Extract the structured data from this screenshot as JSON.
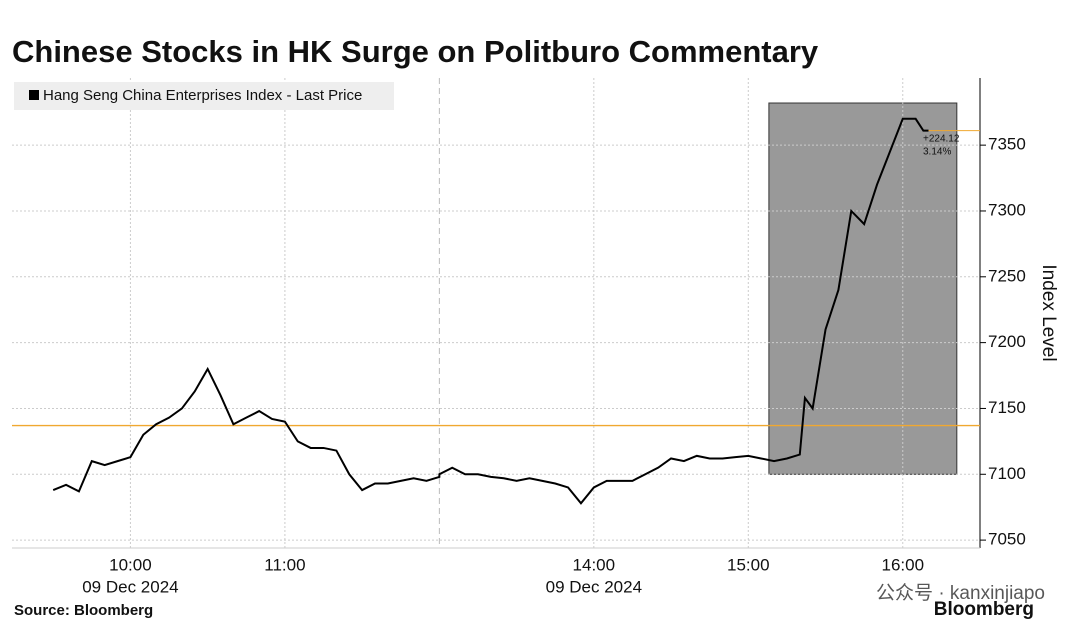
{
  "chart_data": {
    "type": "line",
    "title": "Chinese Stocks in HK Surge on Politburo Commentary",
    "y_label": "Index Level",
    "source": "Source: Bloomberg",
    "brand": "Bloomberg",
    "watermark": "公众号 · kanxinjiapo",
    "x": [
      "09:30",
      "09:35",
      "09:40",
      "09:45",
      "09:50",
      "09:55",
      "10:00",
      "10:05",
      "10:10",
      "10:15",
      "10:20",
      "10:25",
      "10:30",
      "10:35",
      "10:40",
      "10:45",
      "10:50",
      "10:55",
      "11:00",
      "11:05",
      "11:10",
      "11:15",
      "11:20",
      "11:25",
      "11:30",
      "11:35",
      "11:40",
      "11:45",
      "11:50",
      "11:55",
      "12:00",
      "13:00",
      "13:05",
      "13:10",
      "13:15",
      "13:20",
      "13:25",
      "13:30",
      "13:35",
      "13:40",
      "13:45",
      "13:50",
      "13:55",
      "14:00",
      "14:05",
      "14:10",
      "14:15",
      "14:20",
      "14:25",
      "14:30",
      "14:35",
      "14:40",
      "14:45",
      "14:50",
      "14:55",
      "15:00",
      "15:05",
      "15:10",
      "15:15",
      "15:20",
      "15:22",
      "15:25",
      "15:30",
      "15:35",
      "15:40",
      "15:45",
      "15:50",
      "15:55",
      "16:00",
      "16:05",
      "16:08",
      "16:10"
    ],
    "series": [
      {
        "name": "Hang Seng China Enterprises Index - Last Price",
        "color": "#000000",
        "values": [
          7088,
          7092,
          7087,
          7110,
          7107,
          7110,
          7113,
          7130,
          7138,
          7143,
          7150,
          7163,
          7180,
          7160,
          7138,
          7143,
          7148,
          7142,
          7140,
          7125,
          7120,
          7120,
          7118,
          7100,
          7088,
          7093,
          7093,
          7095,
          7097,
          7095,
          7098,
          7100,
          7105,
          7100,
          7100,
          7098,
          7097,
          7095,
          7097,
          7095,
          7093,
          7090,
          7078,
          7090,
          7095,
          7095,
          7095,
          7100,
          7105,
          7112,
          7110,
          7114,
          7112,
          7112,
          7113,
          7114,
          7112,
          7110,
          7112,
          7115,
          7158,
          7150,
          7210,
          7240,
          7300,
          7290,
          7320,
          7345,
          7370,
          7370,
          7361,
          7361
        ]
      }
    ],
    "xlim": [
      "09:14",
      "16:30"
    ],
    "session_break": [
      "12:00",
      "13:00"
    ],
    "xticks": [
      "10:00",
      "11:00",
      "14:00",
      "15:00",
      "16:00"
    ],
    "date_labels": [
      {
        "at": "10:00",
        "label": "09 Dec 2024"
      },
      {
        "at": "14:00",
        "label": "09 Dec 2024"
      }
    ],
    "ylim": [
      7044,
      7401
    ],
    "yticks": [
      7050,
      7100,
      7150,
      7200,
      7250,
      7300,
      7350
    ],
    "grid": true,
    "reference_line": {
      "value": 7137,
      "color": "#f0a830"
    },
    "highlight": {
      "x": [
        "15:08",
        "16:21"
      ],
      "y": [
        7100,
        7382
      ],
      "color": "#999999"
    },
    "last_change": {
      "value": 224.12,
      "label": "+224.12",
      "pct": 3.14,
      "pct_label": "3.14%"
    },
    "legend": "top-left"
  }
}
